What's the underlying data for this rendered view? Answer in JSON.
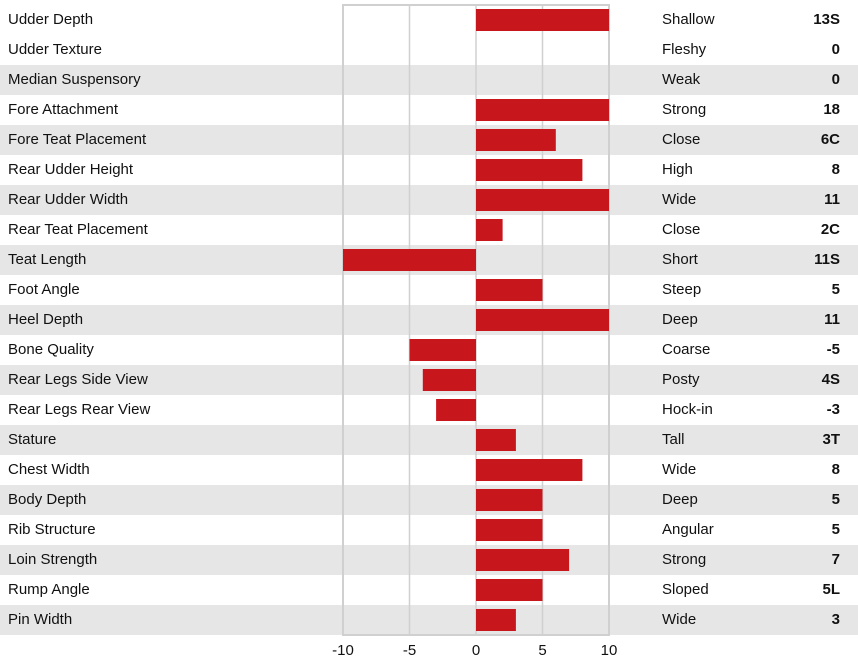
{
  "chart_data": {
    "type": "bar",
    "categories": [
      "Udder Depth",
      "Udder Texture",
      "Median Suspensory",
      "Fore Attachment",
      "Fore Teat Placement",
      "Rear Udder Height",
      "Rear Udder Width",
      "Rear Teat Placement",
      "Teat Length",
      "Foot Angle",
      "Heel Depth",
      "Bone Quality",
      "Rear Legs Side View",
      "Rear Legs Rear View",
      "Stature",
      "Chest Width",
      "Body Depth",
      "Rib Structure",
      "Loin Strength",
      "Rump Angle",
      "Pin Width"
    ],
    "descriptors": [
      "Shallow",
      "Fleshy",
      "Weak",
      "Strong",
      "Close",
      "High",
      "Wide",
      "Close",
      "Short",
      "Steep",
      "Deep",
      "Coarse",
      "Posty",
      "Hock-in",
      "Tall",
      "Wide",
      "Deep",
      "Angular",
      "Strong",
      "Sloped",
      "Wide"
    ],
    "values": [
      13,
      0,
      0,
      18,
      6,
      8,
      11,
      2,
      -11,
      5,
      11,
      -5,
      -4,
      -3,
      3,
      8,
      5,
      5,
      7,
      5,
      3
    ],
    "value_labels": [
      "13S",
      "0",
      "0",
      "18",
      "6C",
      "8",
      "11",
      "2C",
      "11S",
      "5",
      "11",
      "-5",
      "4S",
      "-3",
      "3T",
      "8",
      "5",
      "5",
      "7",
      "5L",
      "3"
    ],
    "color": "#c8161d",
    "xlim": [
      -10,
      10
    ],
    "xticks": [
      -10,
      -5,
      0,
      5,
      10
    ],
    "grid": true
  }
}
